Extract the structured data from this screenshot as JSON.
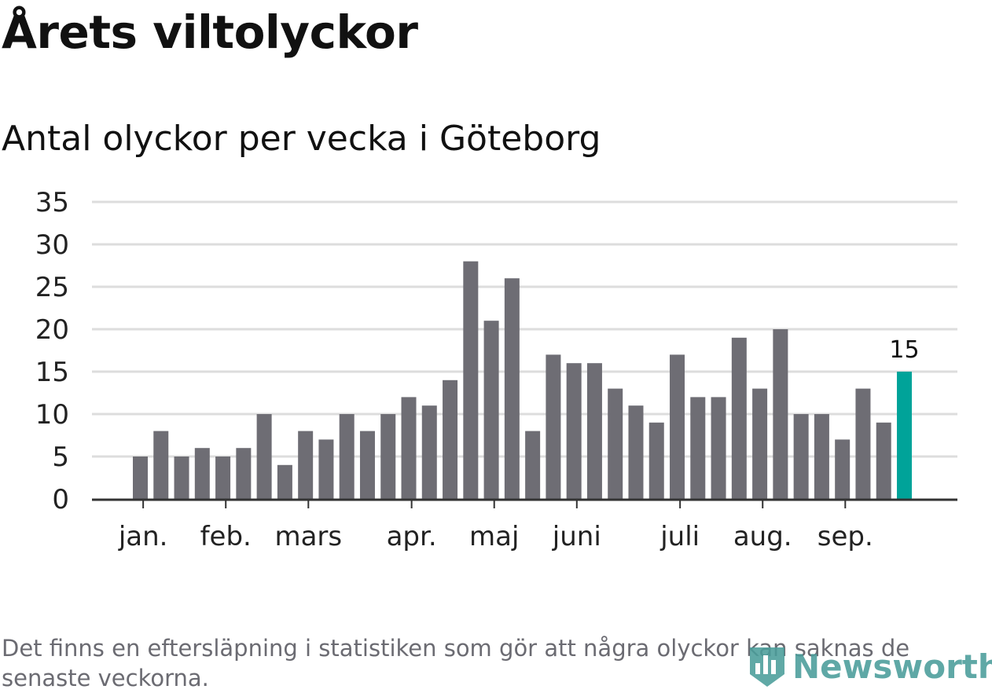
{
  "header": {
    "title": "Årets viltolyckor",
    "subtitle": "Antal olyckor per vecka i Göteborg"
  },
  "footnote": "Det finns en eftersläpning i statistiken som gör att några olyckor kan saknas de senaste veckorna.",
  "logo": {
    "text": "Newsworthy",
    "icon": "newsworthy-logo-icon",
    "color": "#4a9d9a"
  },
  "colors": {
    "bar": "#6e6d74",
    "highlight": "#00a399",
    "grid": "#dddddd",
    "axis": "#333333"
  },
  "chart_data": {
    "type": "bar",
    "title": "Antal olyckor per vecka i Göteborg",
    "xlabel": "",
    "ylabel": "",
    "ylim": [
      0,
      35
    ],
    "yticks": [
      0,
      5,
      10,
      15,
      20,
      25,
      30,
      35
    ],
    "grid": true,
    "values": [
      5,
      8,
      5,
      6,
      5,
      6,
      10,
      4,
      8,
      7,
      10,
      8,
      10,
      12,
      11,
      14,
      28,
      21,
      26,
      8,
      17,
      16,
      16,
      13,
      11,
      9,
      17,
      12,
      12,
      19,
      13,
      20,
      10,
      10,
      7,
      13,
      9,
      15
    ],
    "highlight_index": 37,
    "highlight_label": "15",
    "month_labels": [
      {
        "label": "jan.",
        "bar_position": 0.5
      },
      {
        "label": "feb.",
        "bar_position": 4.5
      },
      {
        "label": "mars",
        "bar_position": 8.5
      },
      {
        "label": "apr.",
        "bar_position": 13.5
      },
      {
        "label": "maj",
        "bar_position": 17.5
      },
      {
        "label": "juni",
        "bar_position": 21.5
      },
      {
        "label": "juli",
        "bar_position": 26.5
      },
      {
        "label": "aug.",
        "bar_position": 30.5
      },
      {
        "label": "sep.",
        "bar_position": 34.5
      }
    ]
  }
}
